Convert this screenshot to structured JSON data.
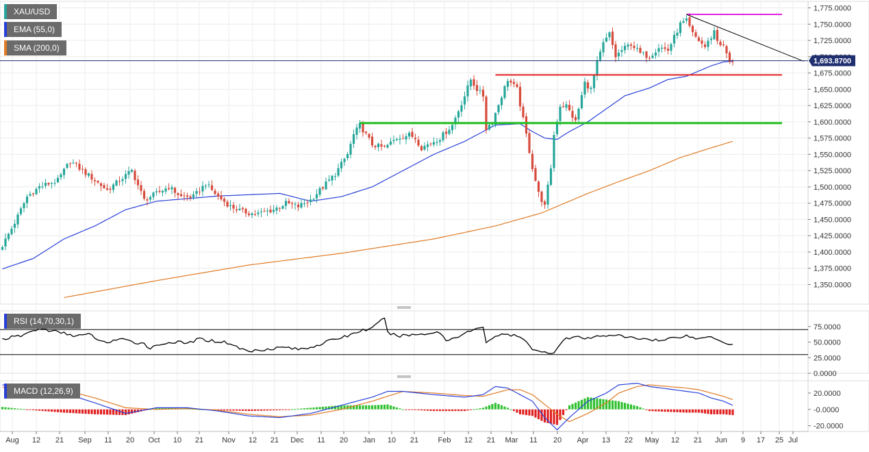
{
  "colors": {
    "up": "#26a69a",
    "down": "#d64a3b",
    "ema": "#2840d8",
    "sma": "#e07b24",
    "rsi": "#000000",
    "macd": "#2840d8",
    "signal": "#e07b24",
    "hist_pos": "#30c030",
    "hist_neg": "#e02020",
    "support_red": "#e01b1b",
    "support_green": "#22c022",
    "resistance_magenta": "#e020e0",
    "trendline": "#000000",
    "price_line": "#1f2f70",
    "badge": "#1f2f70",
    "grid": "#ececec"
  },
  "legend": {
    "price": {
      "label": "XAU/USD",
      "color": "#26a69a"
    },
    "ema": {
      "label": "EMA (55,0)",
      "color": "#2840d8"
    },
    "sma": {
      "label": "SMA (200,0)",
      "color": "#e07b24"
    },
    "rsi": {
      "label": "RSI (14,70,30,1)",
      "color": "#2840d8"
    },
    "macd": {
      "label": "MACD (12,26,9)",
      "color": "#2840d8"
    }
  },
  "current_price_label": "1,693.8700",
  "current_price": 1693.87,
  "chart_data": [
    {
      "type": "candlestick",
      "title": "XAU/USD",
      "y_ticks": [
        "1,775.0000",
        "1,750.0000",
        "1,725.0000",
        "1,700.0000",
        "1,675.0000",
        "1,650.0000",
        "1,625.0000",
        "1,600.0000",
        "1,575.0000",
        "1,550.0000",
        "1,525.0000",
        "1,500.0000",
        "1,475.0000",
        "1,450.0000",
        "1,425.0000",
        "1,400.0000",
        "1,375.0000",
        "1,350.0000"
      ],
      "ylim": [
        1320,
        1785
      ],
      "x_ticks": [
        "Aug",
        "12",
        "21",
        "Sep",
        "11",
        "20",
        "Oct",
        "10",
        "21",
        "Nov",
        "12",
        "21",
        "Dec",
        "11",
        "20",
        "Jan",
        "10",
        "21",
        "Feb",
        "12",
        "21",
        "Mar",
        "11",
        "20",
        "Apr",
        "13",
        "22",
        "May",
        "12",
        "21",
        "Jun",
        "9",
        "17",
        "25",
        "Jul"
      ],
      "close_anchors": [
        [
          0,
          1410
        ],
        [
          4,
          1445
        ],
        [
          8,
          1485
        ],
        [
          12,
          1500
        ],
        [
          18,
          1510
        ],
        [
          22,
          1540
        ],
        [
          26,
          1525
        ],
        [
          30,
          1510
        ],
        [
          34,
          1495
        ],
        [
          38,
          1510
        ],
        [
          42,
          1525
        ],
        [
          46,
          1480
        ],
        [
          50,
          1490
        ],
        [
          54,
          1500
        ],
        [
          58,
          1485
        ],
        [
          62,
          1485
        ],
        [
          66,
          1505
        ],
        [
          70,
          1485
        ],
        [
          74,
          1470
        ],
        [
          78,
          1462
        ],
        [
          82,
          1458
        ],
        [
          88,
          1465
        ],
        [
          92,
          1475
        ],
        [
          96,
          1470
        ],
        [
          100,
          1480
        ],
        [
          104,
          1500
        ],
        [
          108,
          1520
        ],
        [
          112,
          1550
        ],
        [
          114,
          1580
        ],
        [
          116,
          1595
        ],
        [
          120,
          1565
        ],
        [
          124,
          1560
        ],
        [
          128,
          1575
        ],
        [
          132,
          1580
        ],
        [
          134,
          1575
        ],
        [
          136,
          1560
        ],
        [
          140,
          1570
        ],
        [
          142,
          1575
        ],
        [
          146,
          1595
        ],
        [
          150,
          1640
        ],
        [
          152,
          1665
        ],
        [
          154,
          1650
        ],
        [
          156,
          1640
        ],
        [
          157,
          1590
        ],
        [
          159,
          1600
        ],
        [
          162,
          1640
        ],
        [
          164,
          1665
        ],
        [
          167,
          1650
        ],
        [
          170,
          1580
        ],
        [
          172,
          1530
        ],
        [
          174,
          1490
        ],
        [
          176,
          1470
        ],
        [
          178,
          1530
        ],
        [
          179,
          1580
        ],
        [
          181,
          1625
        ],
        [
          183,
          1625
        ],
        [
          186,
          1600
        ],
        [
          189,
          1660
        ],
        [
          191,
          1650
        ],
        [
          193,
          1690
        ],
        [
          195,
          1720
        ],
        [
          197,
          1735
        ],
        [
          199,
          1700
        ],
        [
          201,
          1710
        ],
        [
          204,
          1720
        ],
        [
          207,
          1705
        ],
        [
          210,
          1700
        ],
        [
          213,
          1715
        ],
        [
          216,
          1710
        ],
        [
          218,
          1730
        ],
        [
          220,
          1750
        ],
        [
          222,
          1755
        ],
        [
          224,
          1735
        ],
        [
          226,
          1725
        ],
        [
          228,
          1715
        ],
        [
          230,
          1730
        ],
        [
          231,
          1740
        ],
        [
          232,
          1725
        ],
        [
          234,
          1715
        ],
        [
          235,
          1705
        ],
        [
          236,
          1690
        ],
        [
          237,
          1694
        ]
      ],
      "ema_55": [
        [
          0,
          1374
        ],
        [
          10,
          1390
        ],
        [
          20,
          1420
        ],
        [
          30,
          1440
        ],
        [
          40,
          1465
        ],
        [
          50,
          1478
        ],
        [
          60,
          1482
        ],
        [
          70,
          1486
        ],
        [
          80,
          1488
        ],
        [
          90,
          1490
        ],
        [
          100,
          1478
        ],
        [
          110,
          1485
        ],
        [
          120,
          1500
        ],
        [
          130,
          1525
        ],
        [
          140,
          1550
        ],
        [
          150,
          1570
        ],
        [
          160,
          1595
        ],
        [
          168,
          1597
        ],
        [
          172,
          1585
        ],
        [
          176,
          1575
        ],
        [
          180,
          1573
        ],
        [
          184,
          1585
        ],
        [
          190,
          1600
        ],
        [
          196,
          1620
        ],
        [
          202,
          1640
        ],
        [
          210,
          1652
        ],
        [
          216,
          1665
        ],
        [
          222,
          1670
        ],
        [
          226,
          1678
        ],
        [
          230,
          1686
        ],
        [
          234,
          1692
        ],
        [
          237,
          1693
        ]
      ],
      "sma_200": [
        [
          20,
          1330
        ],
        [
          50,
          1356
        ],
        [
          80,
          1380
        ],
        [
          110,
          1398
        ],
        [
          140,
          1420
        ],
        [
          160,
          1440
        ],
        [
          175,
          1460
        ],
        [
          190,
          1490
        ],
        [
          200,
          1508
        ],
        [
          210,
          1525
        ],
        [
          220,
          1545
        ],
        [
          230,
          1560
        ],
        [
          237,
          1570
        ]
      ],
      "levels": [
        {
          "name": "resistance",
          "y": 1765,
          "x_from": 222,
          "x_to": 253
        },
        {
          "name": "support",
          "y": 1672,
          "x_from": 160,
          "x_to": 253
        },
        {
          "name": "support",
          "y": 1598,
          "x_from": 116,
          "x_to": 253
        }
      ],
      "trendline": {
        "from": [
          222,
          1765
        ],
        "to": [
          260,
          1693
        ]
      }
    },
    {
      "type": "line",
      "title": "RSI (14,70,30,1)",
      "y_ticks": [
        "75.0000",
        "50.0000",
        "25.0000",
        "0.0000"
      ],
      "ylim": [
        0,
        100
      ],
      "levels": [
        70,
        30
      ],
      "values": [
        [
          0,
          55
        ],
        [
          6,
          60
        ],
        [
          12,
          72
        ],
        [
          16,
          68
        ],
        [
          20,
          64
        ],
        [
          24,
          60
        ],
        [
          28,
          62
        ],
        [
          30,
          58
        ],
        [
          32,
          50
        ],
        [
          34,
          50
        ],
        [
          38,
          55
        ],
        [
          42,
          50
        ],
        [
          46,
          48
        ],
        [
          48,
          40
        ],
        [
          52,
          48
        ],
        [
          56,
          50
        ],
        [
          60,
          48
        ],
        [
          64,
          55
        ],
        [
          68,
          52
        ],
        [
          72,
          50
        ],
        [
          74,
          48
        ],
        [
          76,
          42
        ],
        [
          80,
          35
        ],
        [
          84,
          38
        ],
        [
          88,
          40
        ],
        [
          92,
          42
        ],
        [
          96,
          38
        ],
        [
          100,
          42
        ],
        [
          104,
          48
        ],
        [
          108,
          55
        ],
        [
          112,
          60
        ],
        [
          116,
          68
        ],
        [
          120,
          72
        ],
        [
          122,
          80
        ],
        [
          124,
          90
        ],
        [
          125,
          65
        ],
        [
          128,
          60
        ],
        [
          134,
          62
        ],
        [
          138,
          64
        ],
        [
          142,
          66
        ],
        [
          144,
          52
        ],
        [
          148,
          60
        ],
        [
          152,
          68
        ],
        [
          155,
          72
        ],
        [
          156,
          75
        ],
        [
          157,
          50
        ],
        [
          160,
          60
        ],
        [
          164,
          62
        ],
        [
          168,
          58
        ],
        [
          172,
          40
        ],
        [
          175,
          35
        ],
        [
          178,
          30
        ],
        [
          180,
          40
        ],
        [
          182,
          55
        ],
        [
          186,
          58
        ],
        [
          190,
          55
        ],
        [
          194,
          60
        ],
        [
          198,
          62
        ],
        [
          202,
          58
        ],
        [
          206,
          56
        ],
        [
          210,
          55
        ],
        [
          214,
          52
        ],
        [
          218,
          58
        ],
        [
          222,
          60
        ],
        [
          226,
          55
        ],
        [
          230,
          60
        ],
        [
          234,
          50
        ],
        [
          237,
          46
        ]
      ]
    },
    {
      "type": "bar",
      "title": "MACD (12,26,9)",
      "y_ticks": [
        "20.0000",
        "-0.0000",
        "-20.0000"
      ],
      "ylim": [
        -27,
        35
      ],
      "macd": [
        [
          0,
          30
        ],
        [
          10,
          27
        ],
        [
          20,
          20
        ],
        [
          30,
          8
        ],
        [
          40,
          -5
        ],
        [
          50,
          2
        ],
        [
          60,
          2
        ],
        [
          70,
          -2
        ],
        [
          80,
          -8
        ],
        [
          90,
          -10
        ],
        [
          100,
          -5
        ],
        [
          110,
          5
        ],
        [
          120,
          15
        ],
        [
          125,
          22
        ],
        [
          130,
          22
        ],
        [
          140,
          18
        ],
        [
          150,
          15
        ],
        [
          156,
          18
        ],
        [
          160,
          28
        ],
        [
          164,
          26
        ],
        [
          168,
          18
        ],
        [
          172,
          10
        ],
        [
          176,
          -10
        ],
        [
          180,
          -25
        ],
        [
          184,
          -10
        ],
        [
          190,
          10
        ],
        [
          196,
          20
        ],
        [
          200,
          30
        ],
        [
          206,
          32
        ],
        [
          210,
          28
        ],
        [
          216,
          25
        ],
        [
          222,
          22
        ],
        [
          226,
          20
        ],
        [
          230,
          14
        ],
        [
          234,
          10
        ],
        [
          237,
          5
        ]
      ],
      "signal": [
        [
          0,
          27
        ],
        [
          10,
          28
        ],
        [
          20,
          24
        ],
        [
          30,
          14
        ],
        [
          40,
          2
        ],
        [
          50,
          0
        ],
        [
          60,
          1
        ],
        [
          70,
          -1
        ],
        [
          80,
          -6
        ],
        [
          90,
          -9
        ],
        [
          100,
          -7
        ],
        [
          110,
          0
        ],
        [
          120,
          10
        ],
        [
          125,
          16
        ],
        [
          130,
          22
        ],
        [
          140,
          20
        ],
        [
          150,
          17
        ],
        [
          156,
          16
        ],
        [
          160,
          20
        ],
        [
          164,
          24
        ],
        [
          168,
          24
        ],
        [
          172,
          18
        ],
        [
          176,
          6
        ],
        [
          180,
          -6
        ],
        [
          184,
          -15
        ],
        [
          190,
          -5
        ],
        [
          196,
          8
        ],
        [
          200,
          20
        ],
        [
          206,
          28
        ],
        [
          210,
          30
        ],
        [
          216,
          28
        ],
        [
          222,
          26
        ],
        [
          226,
          24
        ],
        [
          230,
          20
        ],
        [
          234,
          16
        ],
        [
          237,
          12
        ]
      ]
    }
  ]
}
